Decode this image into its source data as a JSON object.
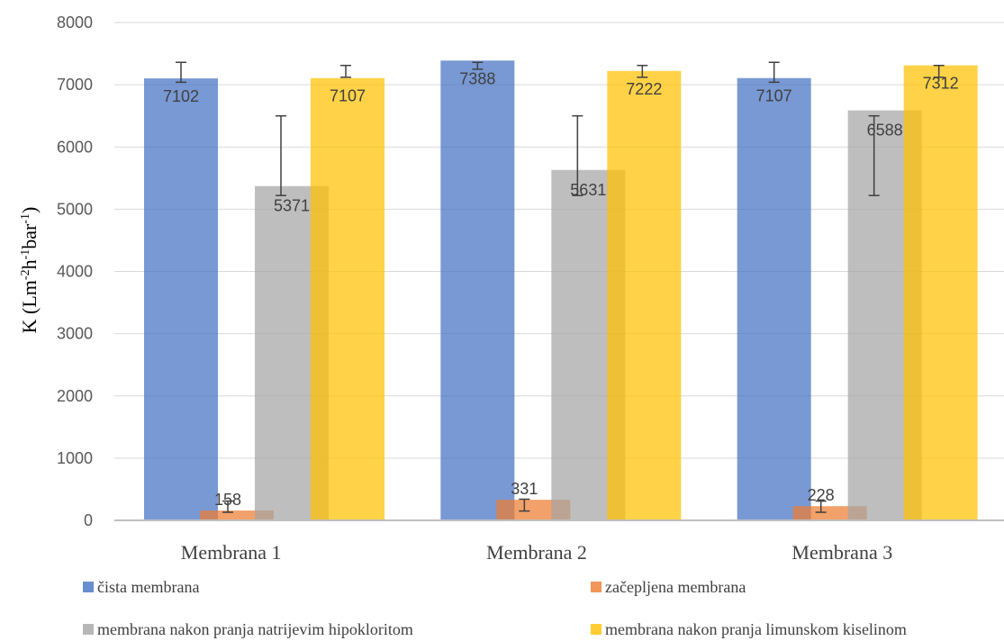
{
  "chart_data": {
    "type": "bar",
    "title": "",
    "xlabel": "",
    "ylabel": {
      "prefix": "K (Lm",
      "sup1": "-2",
      "mid": "h",
      "sup2": "-1",
      "mid2": "bar",
      "sup3": "-1",
      "suffix": ")"
    },
    "ylim": [
      0,
      8000
    ],
    "yticks": [
      "0",
      "1000",
      "2000",
      "3000",
      "4000",
      "5000",
      "6000",
      "7000",
      "8000"
    ],
    "grid": true,
    "legend_position": "bottom",
    "categories": [
      "Membrana 1",
      "Membrana 2",
      "Membrana 3"
    ],
    "series": [
      {
        "name": "čista membrana",
        "color": "#4472C4",
        "values": [
          7102,
          7388,
          7107
        ],
        "labels": [
          "7102",
          "7388",
          "7107"
        ],
        "error_low": [
          7040,
          7250,
          7040
        ],
        "error_high": [
          7360,
          7360,
          7360
        ]
      },
      {
        "name": "začepljena membrana",
        "color": "#ED7D31",
        "values": [
          158,
          331,
          228
        ],
        "labels": [
          "158",
          "331",
          "228"
        ],
        "error_low": [
          130,
          150,
          130
        ],
        "error_high": [
          310,
          340,
          310
        ]
      },
      {
        "name": "membrana nakon pranja natrijevim hipokloritom",
        "color": "#A5A5A5",
        "values": [
          5371,
          5631,
          6588
        ],
        "labels": [
          "5371",
          "5631",
          "6588"
        ],
        "error_low": [
          5220,
          5220,
          5220
        ],
        "error_high": [
          6500,
          6500,
          6500
        ]
      },
      {
        "name": "membrana nakon pranja limunskom kiselinom",
        "color": "#FFC000",
        "values": [
          7107,
          7222,
          7312
        ],
        "labels": [
          "7107",
          "7222",
          "7312"
        ],
        "error_low": [
          7120,
          7120,
          7120
        ],
        "error_high": [
          7310,
          7310,
          7310
        ]
      }
    ]
  }
}
